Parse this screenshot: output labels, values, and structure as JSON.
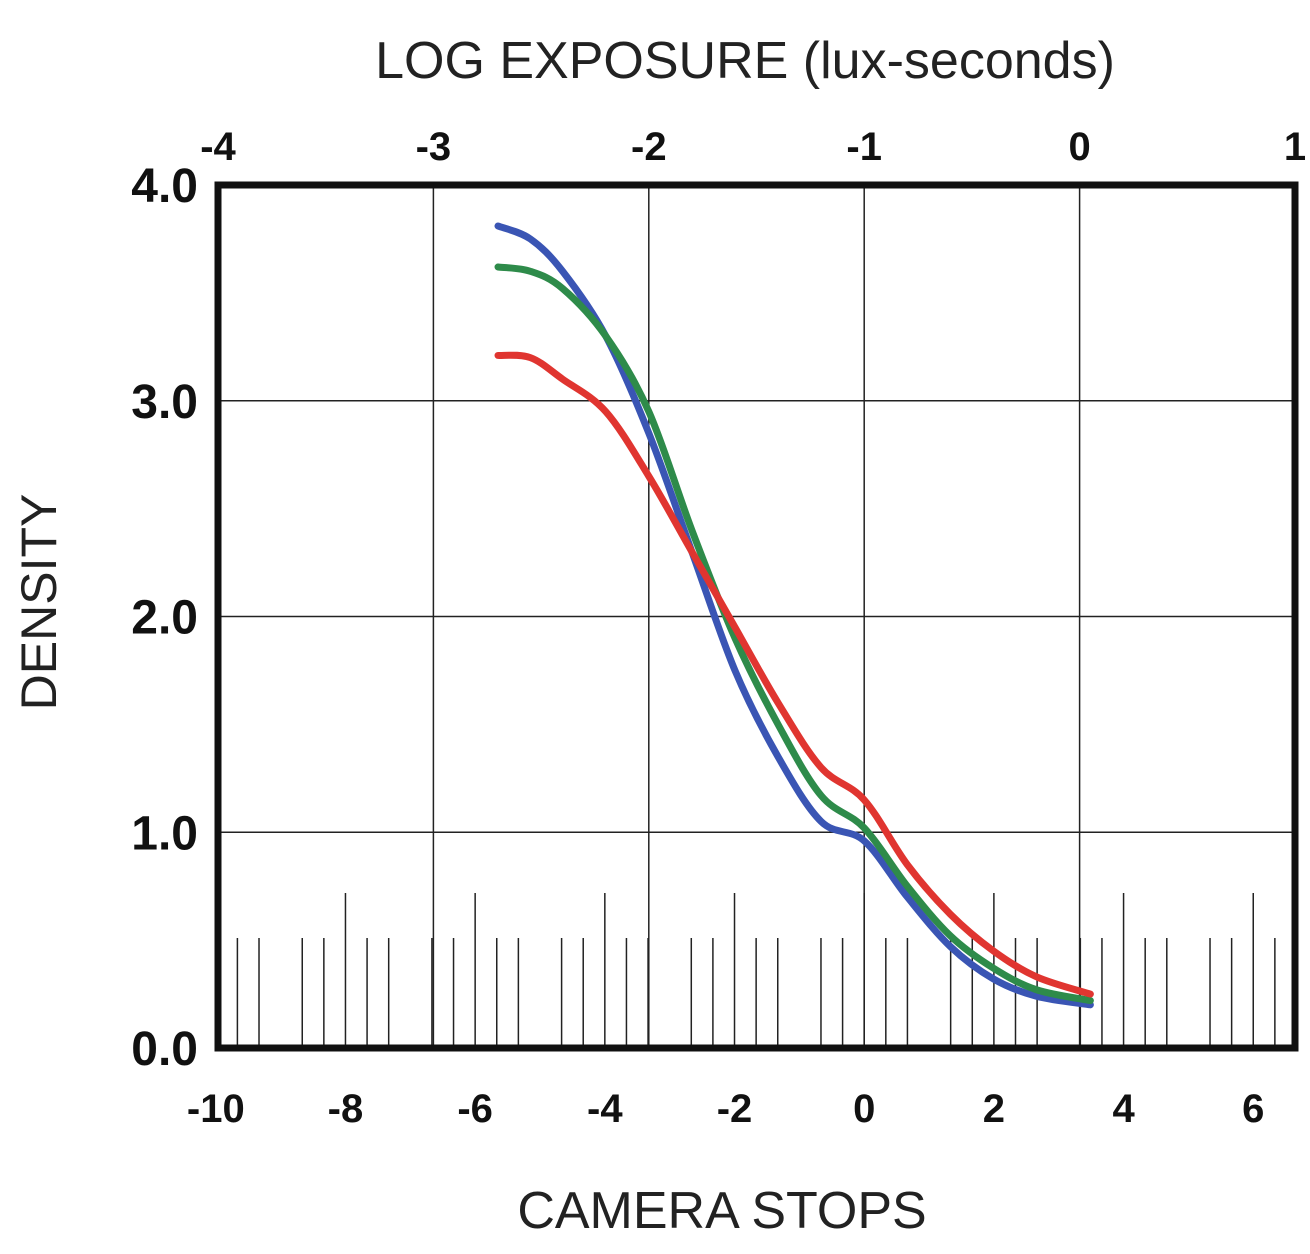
{
  "chart_data": {
    "type": "line",
    "xlabel_top": "LOG EXPOSURE (lux-seconds)",
    "xlabel_bottom": "CAMERA STOPS",
    "ylabel": "DENSITY",
    "x_top_ticks": [
      "-4",
      "-3",
      "-2",
      "-1",
      "0",
      "1"
    ],
    "x_bottom_ticks": [
      "-10",
      "-8",
      "-6",
      "-4",
      "-2",
      "0",
      "2",
      "4",
      "6"
    ],
    "y_ticks": [
      "0.0",
      "1.0",
      "2.0",
      "3.0",
      "4.0"
    ],
    "xlim": [
      -4,
      1
    ],
    "ylim": [
      0,
      4
    ],
    "grid": true,
    "series": [
      {
        "color": "#3a55b4",
        "points": [
          [
            -2.7,
            3.81
          ],
          [
            -2.55,
            3.75
          ],
          [
            -2.4,
            3.6
          ],
          [
            -2.2,
            3.3
          ],
          [
            -2.0,
            2.85
          ],
          [
            -1.8,
            2.3
          ],
          [
            -1.6,
            1.75
          ],
          [
            -1.4,
            1.35
          ],
          [
            -1.2,
            1.05
          ],
          [
            -1.0,
            0.96
          ],
          [
            -0.8,
            0.7
          ],
          [
            -0.6,
            0.47
          ],
          [
            -0.4,
            0.32
          ],
          [
            -0.2,
            0.24
          ],
          [
            0.05,
            0.2
          ]
        ]
      },
      {
        "color": "#2e8b4a",
        "points": [
          [
            -2.7,
            3.62
          ],
          [
            -2.55,
            3.6
          ],
          [
            -2.4,
            3.52
          ],
          [
            -2.2,
            3.3
          ],
          [
            -2.0,
            2.95
          ],
          [
            -1.8,
            2.4
          ],
          [
            -1.6,
            1.9
          ],
          [
            -1.4,
            1.5
          ],
          [
            -1.2,
            1.17
          ],
          [
            -1.0,
            1.02
          ],
          [
            -0.8,
            0.75
          ],
          [
            -0.6,
            0.52
          ],
          [
            -0.4,
            0.37
          ],
          [
            -0.2,
            0.27
          ],
          [
            0.05,
            0.22
          ]
        ]
      },
      {
        "color": "#e03530",
        "points": [
          [
            -2.7,
            3.21
          ],
          [
            -2.55,
            3.2
          ],
          [
            -2.4,
            3.1
          ],
          [
            -2.2,
            2.95
          ],
          [
            -2.0,
            2.65
          ],
          [
            -1.8,
            2.3
          ],
          [
            -1.6,
            1.95
          ],
          [
            -1.4,
            1.6
          ],
          [
            -1.2,
            1.3
          ],
          [
            -1.0,
            1.15
          ],
          [
            -0.8,
            0.85
          ],
          [
            -0.6,
            0.62
          ],
          [
            -0.4,
            0.45
          ],
          [
            -0.2,
            0.33
          ],
          [
            0.05,
            0.25
          ]
        ]
      }
    ]
  }
}
